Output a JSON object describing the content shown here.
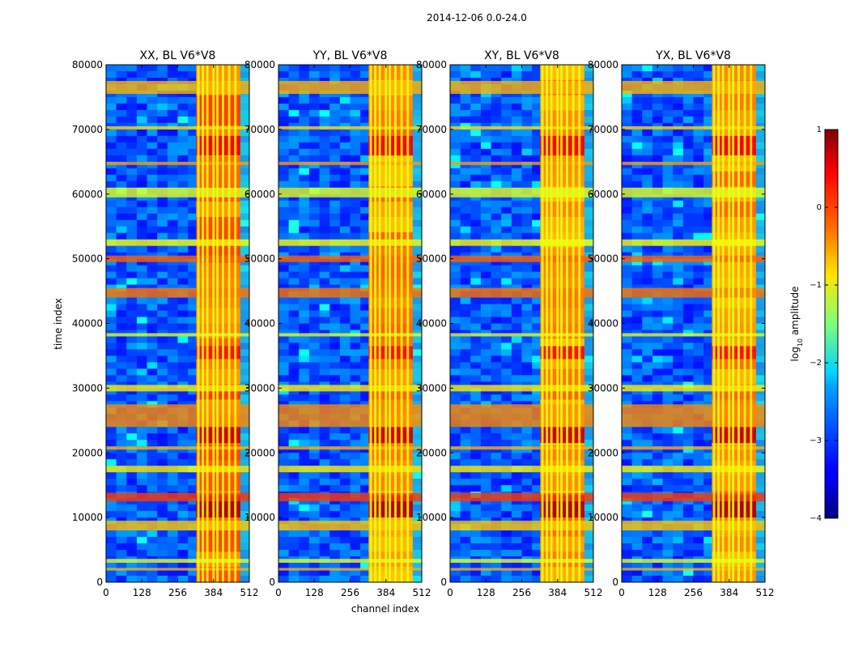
{
  "figure": {
    "suptitle": "2014-12-06 0.0-24.0",
    "xlabel": "channel index",
    "ylabel": "time index"
  },
  "chart_data": {
    "type": "heatmap",
    "colormap": "jet",
    "x_ticks": [
      0,
      128,
      256,
      384,
      512
    ],
    "y_ticks": [
      0,
      10000,
      20000,
      30000,
      40000,
      50000,
      60000,
      70000,
      80000
    ],
    "xlim": [
      0,
      512
    ],
    "ylim": [
      0,
      80000
    ],
    "panels": [
      {
        "title": "XX, BL V6*V8",
        "block_start": 322,
        "block_end": 480,
        "intensity": 0.78
      },
      {
        "title": "YY, BL V6*V8",
        "block_start": 322,
        "block_end": 480,
        "intensity": 0.74
      },
      {
        "title": "XY, BL V6*V8",
        "block_start": 322,
        "block_end": 480,
        "intensity": 0.74
      },
      {
        "title": "YX, BL V6*V8",
        "block_start": 322,
        "block_end": 480,
        "intensity": 0.74
      }
    ],
    "vertical_lines_channels": [
      330,
      346,
      362,
      384,
      398,
      418,
      440,
      462
    ],
    "horizontal_bands_time": [
      {
        "t0": 1800,
        "t1": 2200,
        "level": 0.7
      },
      {
        "t0": 3000,
        "t1": 3600,
        "level": 0.6
      },
      {
        "t0": 8000,
        "t1": 9500,
        "level": 0.68
      },
      {
        "t0": 12500,
        "t1": 13800,
        "level": 0.82
      },
      {
        "t0": 17000,
        "t1": 18000,
        "level": 0.64
      },
      {
        "t0": 20500,
        "t1": 21000,
        "level": 0.7
      },
      {
        "t0": 24000,
        "t1": 27500,
        "level": 0.74
      },
      {
        "t0": 29500,
        "t1": 30500,
        "level": 0.64
      },
      {
        "t0": 38000,
        "t1": 38500,
        "level": 0.6
      },
      {
        "t0": 44000,
        "t1": 45500,
        "level": 0.76
      },
      {
        "t0": 49500,
        "t1": 50500,
        "level": 0.78
      },
      {
        "t0": 52000,
        "t1": 53000,
        "level": 0.62
      },
      {
        "t0": 59500,
        "t1": 61000,
        "level": 0.6
      },
      {
        "t0": 64500,
        "t1": 65000,
        "level": 0.72
      },
      {
        "t0": 70000,
        "t1": 70500,
        "level": 0.66
      },
      {
        "t0": 75500,
        "t1": 77500,
        "level": 0.7
      }
    ],
    "hot_blocks_time": [
      {
        "t0": 10000,
        "t1": 13500,
        "level": 0.95
      },
      {
        "t0": 21500,
        "t1": 24000,
        "level": 0.92
      },
      {
        "t0": 34500,
        "t1": 36500,
        "level": 0.86
      },
      {
        "t0": 66000,
        "t1": 69000,
        "level": 0.88
      }
    ],
    "colorbar": {
      "label": "log10 amplitude",
      "label_main": "log",
      "label_sub": "10",
      "label_rest": " amplitude",
      "ticks": [
        1,
        0,
        -1,
        -2,
        -3,
        -4
      ],
      "tick_labels": [
        "1",
        "0",
        "−1",
        "−2",
        "−3",
        "−4"
      ],
      "vmin": -4,
      "vmax": 1
    }
  }
}
